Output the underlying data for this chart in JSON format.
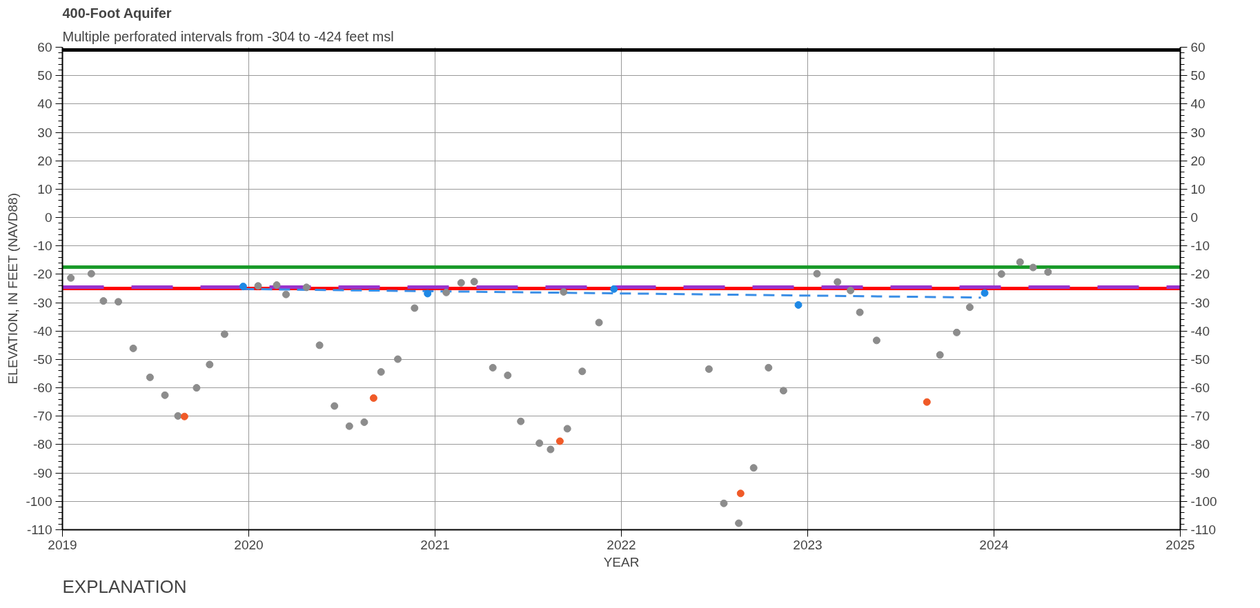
{
  "chart_data": {
    "type": "scatter",
    "title": "400-Foot Aquifer",
    "subtitle": "Multiple perforated intervals from -304 to -424 feet msl",
    "xlabel": "YEAR",
    "ylabel": "ELEVATION, IN FEET (NAVD88)",
    "annotations": [
      "EXPLANATION"
    ],
    "series": [
      {
        "color": "#8c8c8c",
        "x": [
          2019.045,
          2019.155,
          2019.22,
          2019.3,
          2019.38,
          2019.47,
          2019.55,
          2019.62,
          2019.72,
          2019.79,
          2019.87,
          2020.05,
          2020.15,
          2020.2,
          2020.31,
          2020.38,
          2020.46,
          2020.54,
          2020.62,
          2020.71,
          2020.8,
          2020.89,
          2021.06,
          2021.14,
          2021.21,
          2021.31,
          2021.39,
          2021.46,
          2021.56,
          2021.62,
          2021.69,
          2021.71,
          2021.79,
          2021.88,
          2022.47,
          2022.55,
          2022.63,
          2022.71,
          2022.79,
          2022.87,
          2023.05,
          2023.16,
          2023.23,
          2023.28,
          2023.37,
          2023.71,
          2023.8,
          2023.87,
          2024.04,
          2024.14,
          2024.21,
          2024.29
        ],
        "values": [
          -21.3,
          -19.8,
          -29.4,
          -29.7,
          -46.1,
          -56.3,
          -62.6,
          -69.9,
          -60.0,
          -51.8,
          -41.1,
          -24.1,
          -23.8,
          -27.1,
          -24.6,
          -45.0,
          -66.4,
          -73.5,
          -72.1,
          -54.4,
          -49.9,
          -31.9,
          -26.4,
          -23.0,
          -22.6,
          -52.9,
          -55.6,
          -71.8,
          -79.5,
          -81.7,
          -26.2,
          -74.4,
          -54.2,
          -37.0,
          -53.4,
          -100.7,
          -107.7,
          -88.2,
          -52.9,
          -61.0,
          -19.8,
          -22.7,
          -25.7,
          -33.4,
          -43.3,
          -48.4,
          -40.5,
          -31.6,
          -19.9,
          -15.7,
          -17.6,
          -19.2
        ]
      },
      {
        "color": "#f05a28",
        "x": [
          2019.655,
          2020.67,
          2021.67,
          2022.64,
          2023.64
        ],
        "values": [
          -70.1,
          -63.6,
          -78.8,
          -97.2,
          -65.0
        ]
      },
      {
        "color": "#1e88e5",
        "x": [
          2019.97,
          2020.96,
          2021.96,
          2022.95,
          2023.95
        ],
        "values": [
          -24.3,
          -26.8,
          -25.2,
          -30.8,
          -26.6
        ]
      },
      {
        "type": "line",
        "marker": "none",
        "line_style": "dashed",
        "color": "#3a8ee6",
        "x": [
          2019.97,
          2023.93
        ],
        "values": [
          -25.2,
          -28.2
        ]
      }
    ],
    "ref_lines": [
      {
        "axis": "y",
        "value": 59,
        "color": "#000000"
      },
      {
        "axis": "y",
        "value": -17.5,
        "color": "#1a9a2a"
      },
      {
        "axis": "y",
        "value": -25,
        "color": "#ff0000"
      },
      {
        "axis": "y",
        "value": -24.5,
        "color": "#9933cc",
        "line_style": "dashed"
      }
    ],
    "marker": "circle",
    "grid": true,
    "xlim": [
      2019,
      2025
    ],
    "xticks": [
      2019,
      2020,
      2021,
      2022,
      2023,
      2024,
      2025
    ],
    "ylim": [
      -110,
      60
    ],
    "yticks": [
      -110,
      -100,
      -90,
      -80,
      -70,
      -60,
      -50,
      -40,
      -30,
      -20,
      -10,
      0,
      10,
      20,
      30,
      40,
      50,
      60
    ],
    "y2lim": [
      -110,
      60
    ],
    "y2ticks": [
      -110,
      -100,
      -90,
      -80,
      -70,
      -60,
      -50,
      -40,
      -30,
      -20,
      -10,
      0,
      10,
      20,
      30,
      40,
      50,
      60
    ]
  }
}
